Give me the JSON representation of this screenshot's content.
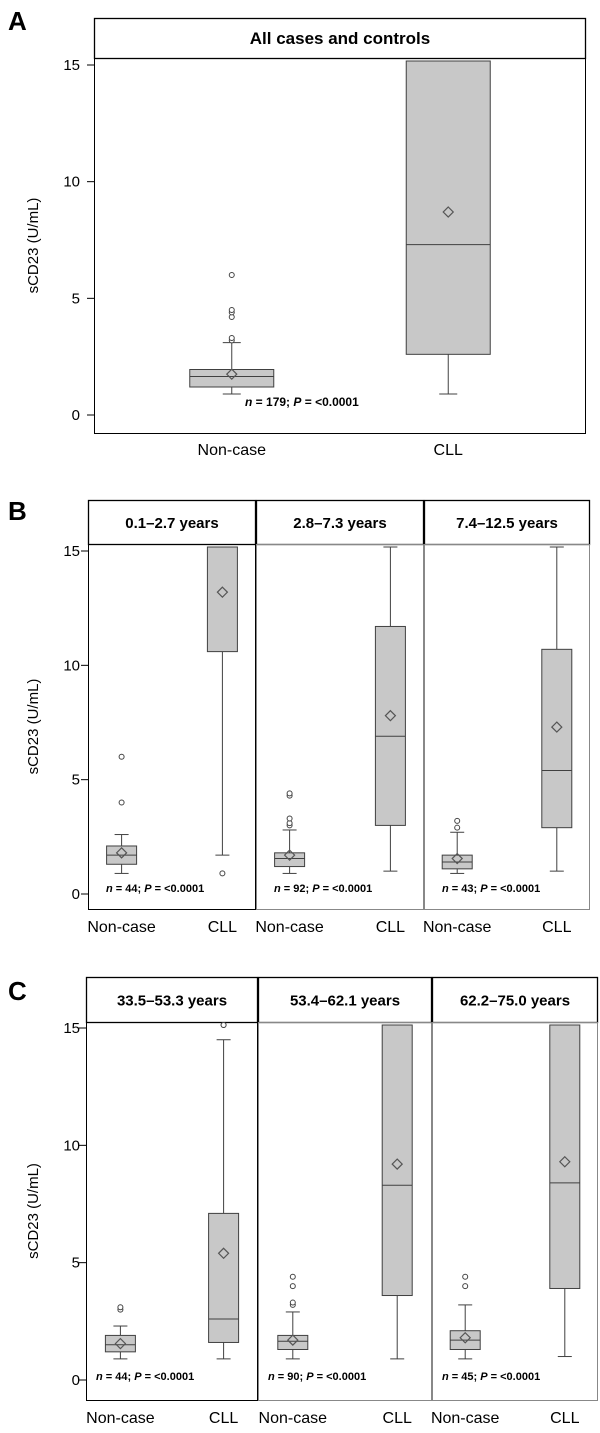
{
  "chart_data": [
    {
      "panel_label": "A",
      "type": "box",
      "ylabel": "sCD23 (U/mL)",
      "yticks": [
        0,
        5,
        10,
        15
      ],
      "ylim": [
        0,
        17
      ],
      "categories": [
        "Non-case",
        "CLL"
      ],
      "facets": [
        {
          "title": "All cases and controls",
          "annotation": {
            "n": "n",
            "n_val": " = 179; ",
            "p": "P",
            "p_val": " = <0.0001"
          },
          "boxes": [
            {
              "category": "Non-case",
              "whisker_low": 0.9,
              "q1": 1.2,
              "median": 1.65,
              "q3": 1.95,
              "whisker_high": 3.1,
              "mean": 1.75,
              "outliers": [
                3.2,
                3.3,
                4.2,
                4.4,
                4.5,
                6.0
              ]
            },
            {
              "category": "CLL",
              "whisker_low": 0.9,
              "q1": 2.6,
              "median": 7.3,
              "q3": 17.0,
              "whisker_high": 17.0,
              "mean": 8.7,
              "outliers": []
            }
          ]
        }
      ]
    },
    {
      "panel_label": "B",
      "type": "box",
      "ylabel": "sCD23 (U/mL)",
      "yticks": [
        0,
        5,
        10,
        15
      ],
      "ylim": [
        0,
        17
      ],
      "categories": [
        "Non-case",
        "CLL"
      ],
      "facets": [
        {
          "title": "0.1–2.7 years",
          "annotation": {
            "n": "n",
            "n_val": " = 44; ",
            "p": "P",
            "p_val": " = <0.0001"
          },
          "boxes": [
            {
              "category": "Non-case",
              "whisker_low": 0.9,
              "q1": 1.3,
              "median": 1.7,
              "q3": 2.1,
              "whisker_high": 2.6,
              "mean": 1.8,
              "outliers": [
                4.0,
                6.0
              ]
            },
            {
              "category": "CLL",
              "whisker_low": 1.7,
              "q1": 10.6,
              "median": 17.0,
              "q3": 17.0,
              "whisker_high": 17.0,
              "mean": 13.2,
              "outliers": [
                0.9
              ]
            }
          ]
        },
        {
          "title": "2.8–7.3 years",
          "annotation": {
            "n": "n",
            "n_val": " = 92; ",
            "p": "P",
            "p_val": " = <0.0001"
          },
          "boxes": [
            {
              "category": "Non-case",
              "whisker_low": 0.9,
              "q1": 1.2,
              "median": 1.55,
              "q3": 1.8,
              "whisker_high": 2.8,
              "mean": 1.7,
              "outliers": [
                3.0,
                3.1,
                3.3,
                4.3,
                4.4
              ]
            },
            {
              "category": "CLL",
              "whisker_low": 1.0,
              "q1": 3.0,
              "median": 6.9,
              "q3": 11.7,
              "whisker_high": 17.0,
              "mean": 7.8,
              "outliers": []
            }
          ]
        },
        {
          "title": "7.4–12.5 years",
          "annotation": {
            "n": "n",
            "n_val": " = 43; ",
            "p": "P",
            "p_val": " = <0.0001"
          },
          "boxes": [
            {
              "category": "Non-case",
              "whisker_low": 0.9,
              "q1": 1.1,
              "median": 1.4,
              "q3": 1.7,
              "whisker_high": 2.7,
              "mean": 1.55,
              "outliers": [
                2.9,
                3.2
              ]
            },
            {
              "category": "CLL",
              "whisker_low": 1.0,
              "q1": 2.9,
              "median": 5.4,
              "q3": 10.7,
              "whisker_high": 17.0,
              "mean": 7.3,
              "outliers": []
            }
          ]
        }
      ]
    },
    {
      "panel_label": "C",
      "type": "box",
      "ylabel": "sCD23 (U/mL)",
      "yticks": [
        0,
        5,
        10,
        15
      ],
      "ylim": [
        0,
        17
      ],
      "categories": [
        "Non-case",
        "CLL"
      ],
      "facets": [
        {
          "title": "33.5–53.3 years",
          "annotation": {
            "n": "n",
            "n_val": " = 44; ",
            "p": "P",
            "p_val": " = <0.0001"
          },
          "boxes": [
            {
              "category": "Non-case",
              "whisker_low": 0.9,
              "q1": 1.2,
              "median": 1.5,
              "q3": 1.9,
              "whisker_high": 2.3,
              "mean": 1.55,
              "outliers": [
                3.0,
                3.1
              ]
            },
            {
              "category": "CLL",
              "whisker_low": 0.9,
              "q1": 1.6,
              "median": 2.6,
              "q3": 7.1,
              "whisker_high": 14.5,
              "mean": 5.4,
              "outliers": [
                17.0,
                17.1
              ]
            }
          ]
        },
        {
          "title": "53.4–62.1 years",
          "annotation": {
            "n": "n",
            "n_val": " = 90; ",
            "p": "P",
            "p_val": " = <0.0001"
          },
          "boxes": [
            {
              "category": "Non-case",
              "whisker_low": 0.9,
              "q1": 1.3,
              "median": 1.65,
              "q3": 1.9,
              "whisker_high": 2.9,
              "mean": 1.7,
              "outliers": [
                3.2,
                3.3,
                4.0,
                4.4
              ]
            },
            {
              "category": "CLL",
              "whisker_low": 0.9,
              "q1": 3.6,
              "median": 8.3,
              "q3": 16.8,
              "whisker_high": 17.0,
              "mean": 9.2,
              "outliers": []
            }
          ]
        },
        {
          "title": "62.2–75.0 years",
          "annotation": {
            "n": "n",
            "n_val": " = 45; ",
            "p": "P",
            "p_val": " = <0.0001"
          },
          "boxes": [
            {
              "category": "Non-case",
              "whisker_low": 0.9,
              "q1": 1.3,
              "median": 1.7,
              "q3": 2.1,
              "whisker_high": 3.2,
              "mean": 1.8,
              "outliers": [
                4.0,
                4.4
              ]
            },
            {
              "category": "CLL",
              "whisker_low": 1.0,
              "q1": 3.9,
              "median": 8.4,
              "q3": 15.7,
              "whisker_high": 17.0,
              "mean": 9.3,
              "outliers": []
            }
          ]
        }
      ]
    }
  ],
  "colors": {
    "box_fill": "#c8c8c8",
    "line": "#404040",
    "frame": "#000000",
    "facet_border": "#888888"
  }
}
